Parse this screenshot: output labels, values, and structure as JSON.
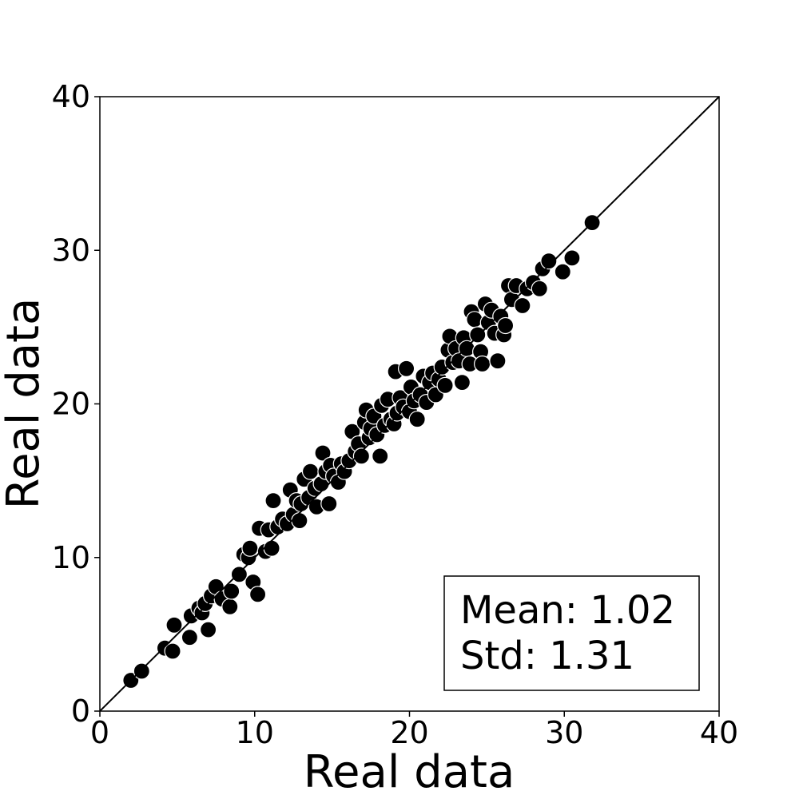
{
  "chart_data": {
    "type": "scatter",
    "title": "",
    "xlabel": "Real data",
    "ylabel": "Real data",
    "xlim": [
      0,
      40
    ],
    "ylim": [
      0,
      40
    ],
    "xticks": [
      "0",
      "10",
      "20",
      "30",
      "40"
    ],
    "yticks": [
      "0",
      "10",
      "20",
      "30",
      "40"
    ],
    "grid": false,
    "reference_line": "y = x",
    "marker_color": "#000000",
    "marker_edge_color": "#ffffff",
    "stats_box": {
      "mean_label": "Mean: 1.02",
      "std_label": "Std: 1.31",
      "placement": "bottom-right"
    },
    "series": [
      {
        "points": [
          [
            2.0,
            2.0
          ],
          [
            2.7,
            2.6
          ],
          [
            4.2,
            4.1
          ],
          [
            4.7,
            3.9
          ],
          [
            4.8,
            5.6
          ],
          [
            5.8,
            4.8
          ],
          [
            5.9,
            6.2
          ],
          [
            6.4,
            6.7
          ],
          [
            6.6,
            6.4
          ],
          [
            6.8,
            7.0
          ],
          [
            7.0,
            5.3
          ],
          [
            7.2,
            7.5
          ],
          [
            7.5,
            8.1
          ],
          [
            7.9,
            7.3
          ],
          [
            8.4,
            6.8
          ],
          [
            8.5,
            7.8
          ],
          [
            9.0,
            8.9
          ],
          [
            9.3,
            10.2
          ],
          [
            9.6,
            10.0
          ],
          [
            9.9,
            8.4
          ],
          [
            9.7,
            10.6
          ],
          [
            10.2,
            7.6
          ],
          [
            10.3,
            11.9
          ],
          [
            10.7,
            10.4
          ],
          [
            10.9,
            11.8
          ],
          [
            11.1,
            10.6
          ],
          [
            11.2,
            13.7
          ],
          [
            11.5,
            12.0
          ],
          [
            11.8,
            12.5
          ],
          [
            12.1,
            12.2
          ],
          [
            12.3,
            14.4
          ],
          [
            12.5,
            12.8
          ],
          [
            12.7,
            13.7
          ],
          [
            12.9,
            12.4
          ],
          [
            13.0,
            13.5
          ],
          [
            13.2,
            15.1
          ],
          [
            13.5,
            13.9
          ],
          [
            13.6,
            15.6
          ],
          [
            13.9,
            14.5
          ],
          [
            14.0,
            13.3
          ],
          [
            14.3,
            14.8
          ],
          [
            14.4,
            16.8
          ],
          [
            14.6,
            15.6
          ],
          [
            14.8,
            13.5
          ],
          [
            14.9,
            16.0
          ],
          [
            15.1,
            15.3
          ],
          [
            15.4,
            14.9
          ],
          [
            15.6,
            16.1
          ],
          [
            15.8,
            15.6
          ],
          [
            16.1,
            16.3
          ],
          [
            16.3,
            18.2
          ],
          [
            16.5,
            16.9
          ],
          [
            16.7,
            17.4
          ],
          [
            16.9,
            16.6
          ],
          [
            17.1,
            18.8
          ],
          [
            17.2,
            19.6
          ],
          [
            17.4,
            17.8
          ],
          [
            17.5,
            18.4
          ],
          [
            17.7,
            19.2
          ],
          [
            17.9,
            18.0
          ],
          [
            18.1,
            16.6
          ],
          [
            18.2,
            19.9
          ],
          [
            18.4,
            18.6
          ],
          [
            18.6,
            20.3
          ],
          [
            18.8,
            19.0
          ],
          [
            19.0,
            18.7
          ],
          [
            19.1,
            22.1
          ],
          [
            19.2,
            19.4
          ],
          [
            19.4,
            20.4
          ],
          [
            19.6,
            19.8
          ],
          [
            19.8,
            22.3
          ],
          [
            20.0,
            19.5
          ],
          [
            20.1,
            21.1
          ],
          [
            20.3,
            20.2
          ],
          [
            20.5,
            19.0
          ],
          [
            20.7,
            20.6
          ],
          [
            20.9,
            21.8
          ],
          [
            21.1,
            20.1
          ],
          [
            21.3,
            21.4
          ],
          [
            21.5,
            22.0
          ],
          [
            21.7,
            20.6
          ],
          [
            21.9,
            21.6
          ],
          [
            22.1,
            22.4
          ],
          [
            22.3,
            21.2
          ],
          [
            22.5,
            23.5
          ],
          [
            22.6,
            24.4
          ],
          [
            22.8,
            22.7
          ],
          [
            23.0,
            23.6
          ],
          [
            23.2,
            22.8
          ],
          [
            23.4,
            21.4
          ],
          [
            23.5,
            24.3
          ],
          [
            23.7,
            23.6
          ],
          [
            23.9,
            22.6
          ],
          [
            24.0,
            26.0
          ],
          [
            24.2,
            25.5
          ],
          [
            24.4,
            24.5
          ],
          [
            24.6,
            23.4
          ],
          [
            24.7,
            22.6
          ],
          [
            24.9,
            26.5
          ],
          [
            25.1,
            25.3
          ],
          [
            25.3,
            26.1
          ],
          [
            25.5,
            24.6
          ],
          [
            25.7,
            22.8
          ],
          [
            25.9,
            25.7
          ],
          [
            26.1,
            24.5
          ],
          [
            26.2,
            25.1
          ],
          [
            26.4,
            27.7
          ],
          [
            26.6,
            26.8
          ],
          [
            26.9,
            27.7
          ],
          [
            27.3,
            26.4
          ],
          [
            27.6,
            27.5
          ],
          [
            28.0,
            27.9
          ],
          [
            28.4,
            27.5
          ],
          [
            28.6,
            28.8
          ],
          [
            29.0,
            29.3
          ],
          [
            29.9,
            28.6
          ],
          [
            30.5,
            29.5
          ],
          [
            31.8,
            31.8
          ]
        ]
      }
    ]
  }
}
